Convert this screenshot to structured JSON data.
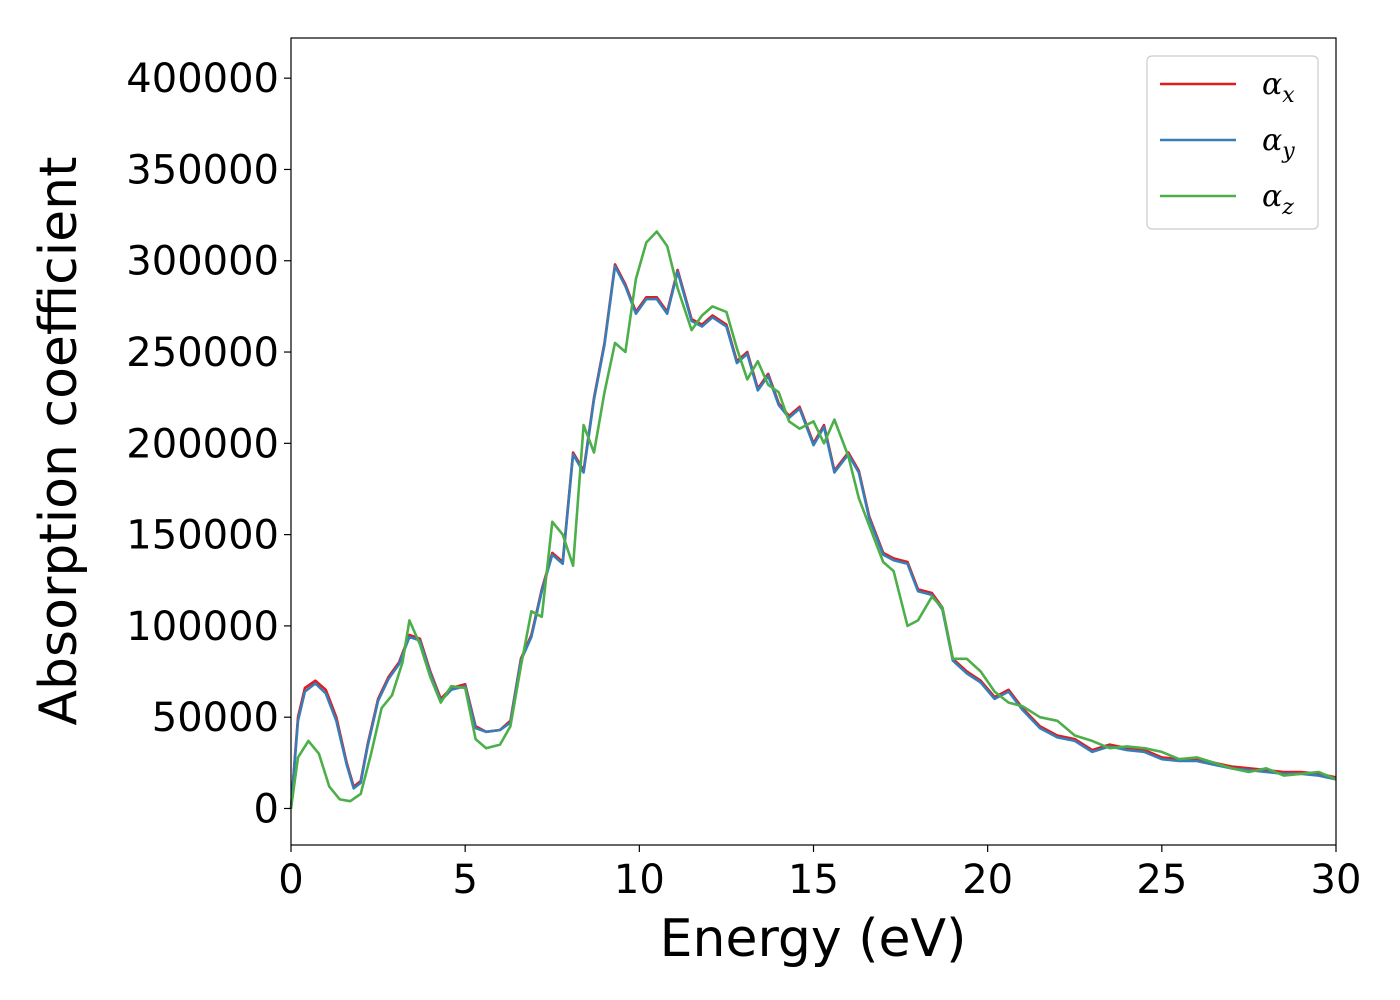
{
  "chart_data": {
    "type": "line",
    "title": "",
    "xlabel": "Energy (eV)",
    "ylabel": "Absorption coefficient",
    "xlim": [
      0,
      30
    ],
    "ylim": [
      -20000,
      422000
    ],
    "xticks": [
      0,
      5,
      10,
      15,
      20,
      25,
      30
    ],
    "xtick_labels": [
      "0",
      "5",
      "10",
      "15",
      "20",
      "25",
      "30"
    ],
    "yticks": [
      0,
      50000,
      100000,
      150000,
      200000,
      250000,
      300000,
      350000,
      400000
    ],
    "ytick_labels": [
      "0",
      "50000",
      "100000",
      "150000",
      "200000",
      "250000",
      "300000",
      "350000",
      "400000"
    ],
    "grid": false,
    "legend_position": "top-right",
    "series": [
      {
        "name": "α_x",
        "label_base": "α",
        "label_sub": "x",
        "color": "#e41a1c",
        "x": [
          0,
          0.2,
          0.4,
          0.7,
          1.0,
          1.3,
          1.6,
          1.8,
          2.0,
          2.2,
          2.5,
          2.8,
          3.1,
          3.4,
          3.7,
          4.0,
          4.3,
          4.6,
          5.0,
          5.3,
          5.6,
          6.0,
          6.3,
          6.6,
          6.9,
          7.2,
          7.5,
          7.8,
          8.1,
          8.4,
          8.7,
          9.0,
          9.3,
          9.6,
          9.9,
          10.2,
          10.5,
          10.8,
          11.1,
          11.5,
          11.8,
          12.1,
          12.5,
          12.8,
          13.1,
          13.4,
          13.7,
          14.0,
          14.3,
          14.6,
          15.0,
          15.3,
          15.6,
          16.0,
          16.3,
          16.6,
          17.0,
          17.3,
          17.7,
          18.0,
          18.4,
          18.7,
          19.0,
          19.4,
          19.8,
          20.2,
          20.6,
          21.0,
          21.5,
          22.0,
          22.5,
          23.0,
          23.5,
          24.0,
          24.5,
          25.0,
          25.5,
          26.0,
          26.5,
          27.0,
          27.5,
          28.0,
          28.5,
          29.0,
          29.5,
          30.0
        ],
        "y": [
          0,
          50000,
          66000,
          70000,
          65000,
          50000,
          25000,
          12000,
          15000,
          35000,
          60000,
          72000,
          80000,
          95000,
          93000,
          75000,
          60000,
          66000,
          68000,
          45000,
          42000,
          43000,
          48000,
          82000,
          95000,
          120000,
          140000,
          135000,
          195000,
          185000,
          225000,
          255000,
          298000,
          287000,
          272000,
          280000,
          280000,
          272000,
          295000,
          268000,
          265000,
          270000,
          265000,
          245000,
          250000,
          230000,
          238000,
          222000,
          215000,
          220000,
          200000,
          210000,
          185000,
          195000,
          185000,
          160000,
          140000,
          137000,
          135000,
          120000,
          118000,
          110000,
          82000,
          75000,
          70000,
          61000,
          65000,
          55000,
          45000,
          40000,
          38000,
          32000,
          35000,
          33000,
          32000,
          28000,
          27000,
          27000,
          25000,
          23000,
          22000,
          21000,
          20000,
          20000,
          19000,
          17000
        ]
      },
      {
        "name": "α_y",
        "label_base": "α",
        "label_sub": "y",
        "color": "#377eb8",
        "x": [
          0,
          0.2,
          0.4,
          0.7,
          1.0,
          1.3,
          1.6,
          1.8,
          2.0,
          2.2,
          2.5,
          2.8,
          3.1,
          3.4,
          3.7,
          4.0,
          4.3,
          4.6,
          5.0,
          5.3,
          5.6,
          6.0,
          6.3,
          6.6,
          6.9,
          7.2,
          7.5,
          7.8,
          8.1,
          8.4,
          8.7,
          9.0,
          9.3,
          9.6,
          9.9,
          10.2,
          10.5,
          10.8,
          11.1,
          11.5,
          11.8,
          12.1,
          12.5,
          12.8,
          13.1,
          13.4,
          13.7,
          14.0,
          14.3,
          14.6,
          15.0,
          15.3,
          15.6,
          16.0,
          16.3,
          16.6,
          17.0,
          17.3,
          17.7,
          18.0,
          18.4,
          18.7,
          19.0,
          19.4,
          19.8,
          20.2,
          20.6,
          21.0,
          21.5,
          22.0,
          22.5,
          23.0,
          23.5,
          24.0,
          24.5,
          25.0,
          25.5,
          26.0,
          26.5,
          27.0,
          27.5,
          28.0,
          28.5,
          29.0,
          29.5,
          30.0
        ],
        "y": [
          0,
          48000,
          64000,
          68500,
          63000,
          48000,
          24000,
          11000,
          14000,
          34000,
          59000,
          71000,
          79000,
          94000,
          92000,
          74000,
          59000,
          65000,
          67000,
          44000,
          42000,
          43000,
          47000,
          81000,
          94000,
          119000,
          139000,
          134000,
          194000,
          184000,
          224000,
          254000,
          297000,
          286000,
          271000,
          279000,
          279000,
          271000,
          294000,
          267000,
          264000,
          269000,
          264000,
          244000,
          249000,
          229000,
          237000,
          221000,
          214000,
          219000,
          199000,
          209000,
          184000,
          194000,
          184000,
          159000,
          139000,
          136000,
          134000,
          119000,
          117000,
          109000,
          81000,
          74000,
          69000,
          60000,
          64000,
          54000,
          44000,
          39000,
          37000,
          31000,
          34000,
          32000,
          31000,
          27000,
          26000,
          26000,
          24000,
          22000,
          21000,
          20000,
          19000,
          19000,
          18000,
          16000
        ]
      },
      {
        "name": "α_z",
        "label_base": "α",
        "label_sub": "z",
        "color": "#4daf4a",
        "x": [
          0,
          0.2,
          0.5,
          0.8,
          1.1,
          1.4,
          1.7,
          2.0,
          2.3,
          2.6,
          2.9,
          3.2,
          3.4,
          3.7,
          4.0,
          4.3,
          4.6,
          5.0,
          5.3,
          5.6,
          6.0,
          6.3,
          6.6,
          6.9,
          7.2,
          7.5,
          7.8,
          8.1,
          8.4,
          8.7,
          9.0,
          9.3,
          9.6,
          9.9,
          10.2,
          10.5,
          10.8,
          11.1,
          11.5,
          11.8,
          12.1,
          12.5,
          12.8,
          13.1,
          13.4,
          13.7,
          14.0,
          14.3,
          14.6,
          15.0,
          15.3,
          15.6,
          16.0,
          16.3,
          16.6,
          17.0,
          17.3,
          17.7,
          18.0,
          18.4,
          18.7,
          19.0,
          19.4,
          19.8,
          20.2,
          20.6,
          21.0,
          21.5,
          22.0,
          22.5,
          23.0,
          23.5,
          24.0,
          24.5,
          25.0,
          25.5,
          26.0,
          26.5,
          27.0,
          27.5,
          28.0,
          28.5,
          29.0,
          29.5,
          30.0
        ],
        "y": [
          0,
          28000,
          37000,
          30000,
          12000,
          5000,
          4000,
          8000,
          30000,
          55000,
          62000,
          80000,
          103000,
          90000,
          72000,
          58000,
          67000,
          66000,
          38000,
          33000,
          35000,
          45000,
          78000,
          108000,
          105000,
          157000,
          150000,
          133000,
          210000,
          195000,
          228000,
          255000,
          250000,
          290000,
          310000,
          316000,
          308000,
          285000,
          262000,
          270000,
          275000,
          272000,
          252000,
          235000,
          245000,
          232000,
          228000,
          212000,
          208000,
          212000,
          200000,
          213000,
          193000,
          170000,
          155000,
          135000,
          130000,
          100000,
          103000,
          116000,
          110000,
          82000,
          82000,
          75000,
          64000,
          58000,
          56000,
          50000,
          48000,
          40000,
          37000,
          33000,
          34000,
          33000,
          31000,
          27000,
          28000,
          25000,
          22000,
          20000,
          22000,
          18000,
          19000,
          20000,
          16000
        ]
      }
    ]
  }
}
